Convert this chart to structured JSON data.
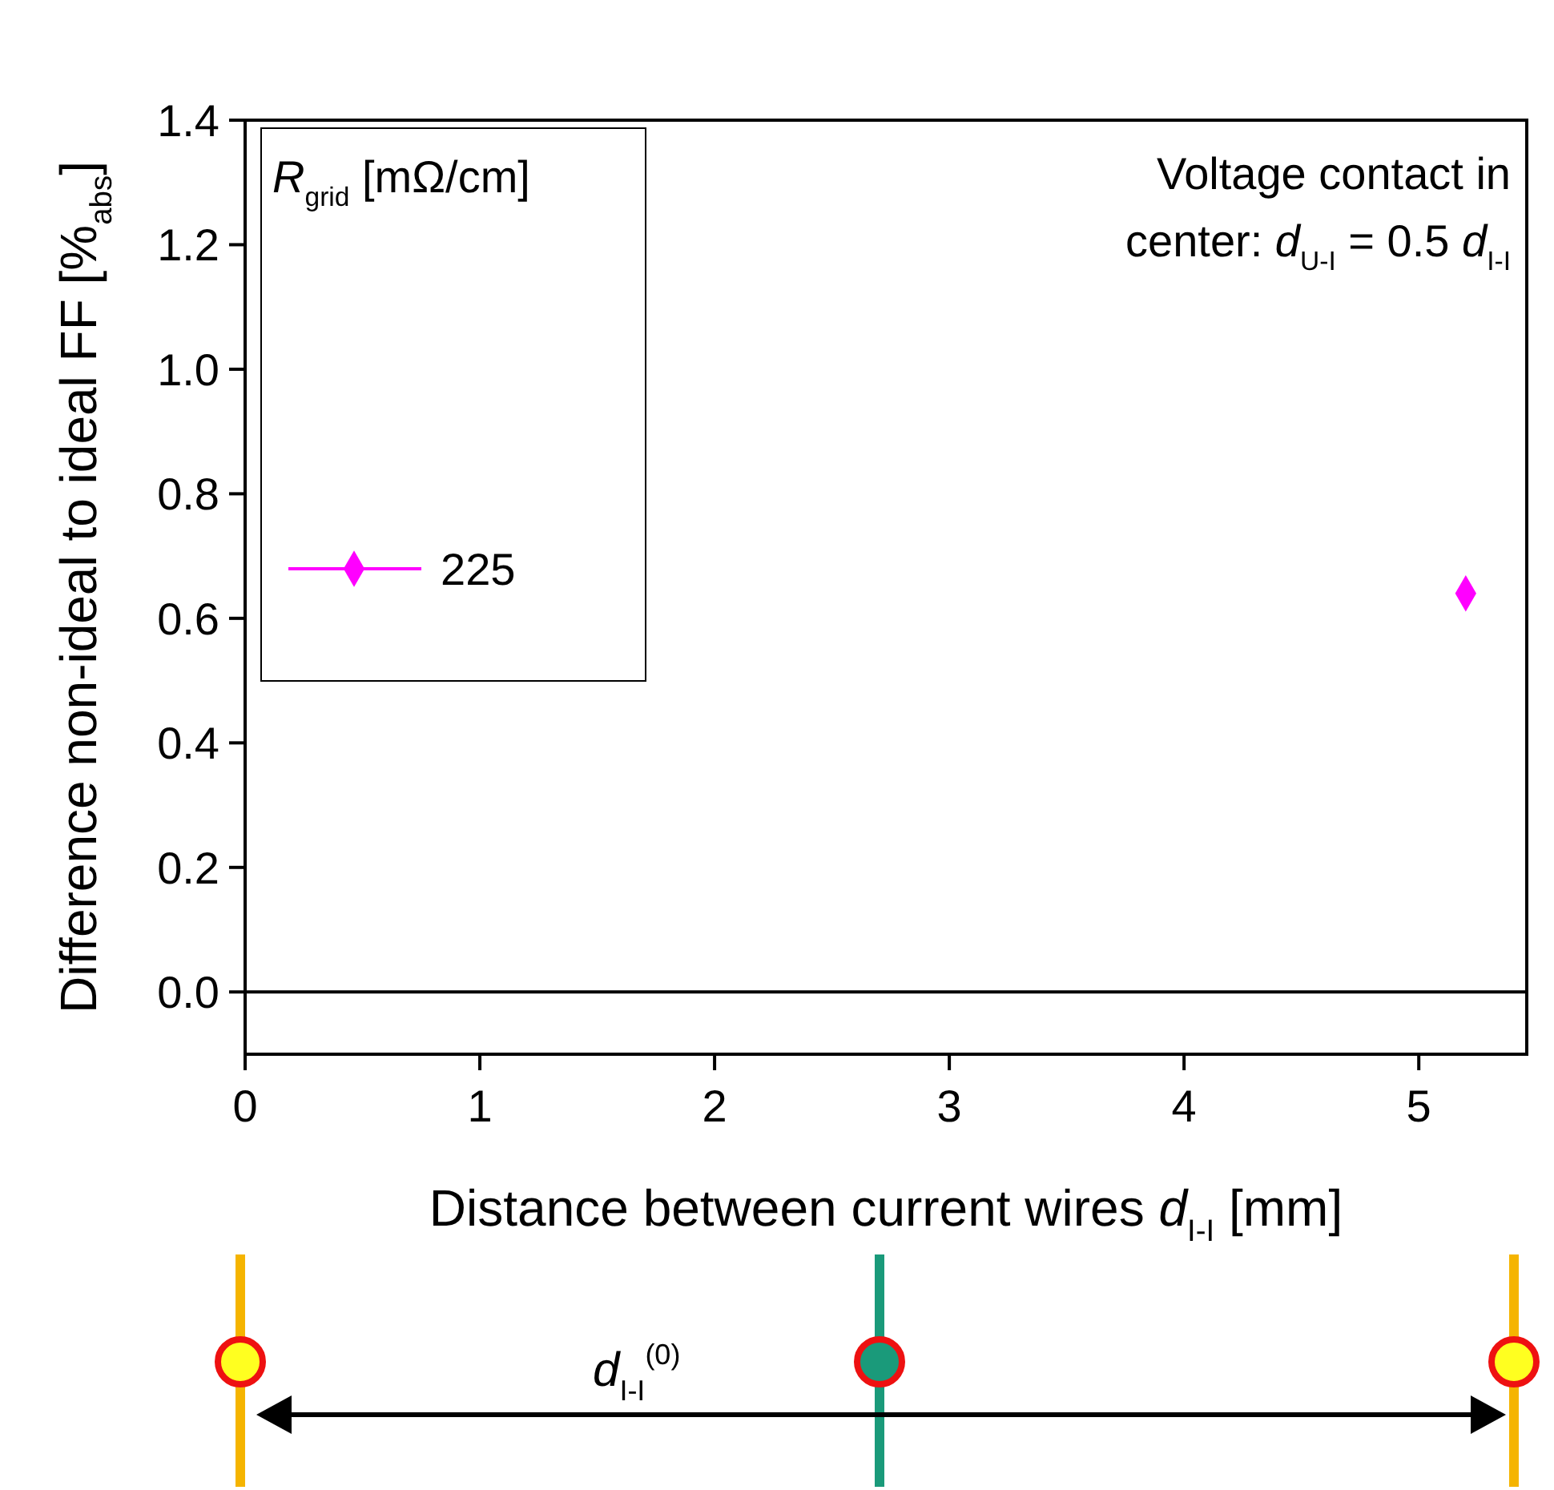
{
  "chart_data": {
    "type": "scatter",
    "xlabel": "Distance between current wires d$_{I-I}$ [mm]",
    "ylabel": "Difference non-ideal to ideal FF [%$_{abs}$]",
    "legend_title": "R$_{grid}$ [mΩ/cm]",
    "xlim": [
      0,
      5.46
    ],
    "xticks": [
      0,
      1,
      2,
      3,
      4,
      5
    ],
    "ylim": [
      -0.1,
      1.4
    ],
    "yticks": [
      {
        "value": 0,
        "label": "0.0"
      },
      0.2,
      0.4,
      0.6,
      0.8,
      {
        "value": 1,
        "label": "1.0"
      },
      1.2,
      1.4
    ],
    "series": [
      {
        "name": "225",
        "color": "#ff00ff",
        "x": [
          5.2
        ],
        "values": [
          0.64
        ]
      }
    ],
    "marker": "diamond",
    "legend": "top left",
    "grid": false,
    "ref_lines": [
      {
        "axis": "y",
        "value": 0,
        "color": "#000000"
      }
    ],
    "annotations": [
      "Voltage contact in",
      "center: d$_{U-I}$ = 0.5 d$_{I-I}$",
      "d$_{I-I}$$^{(0)}$"
    ]
  }
}
